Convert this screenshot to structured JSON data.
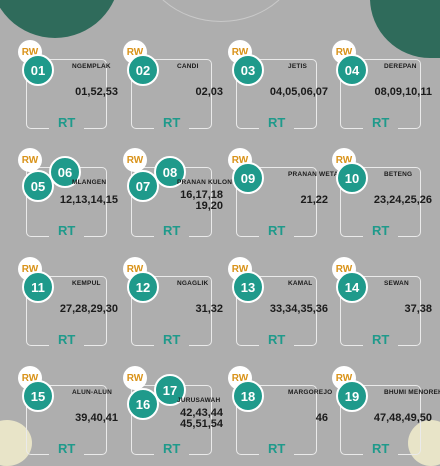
{
  "colors": {
    "background": "#aeaeae",
    "teal": "#1f9a8b",
    "rw_text": "#d9931a",
    "dark_green": "#2f6b5b"
  },
  "rw_label": "RW",
  "rt_label": "RT",
  "cards": [
    {
      "num": "01",
      "name": "NGEMPLAK",
      "values": [
        "01,52,53"
      ]
    },
    {
      "num": "02",
      "name": "CANDI",
      "values": [
        "02,03"
      ]
    },
    {
      "num": "03",
      "name": "JETIS",
      "values": [
        "04,05,06,07"
      ]
    },
    {
      "num": "04",
      "name": "DEREPAN",
      "values": [
        "08,09,10,11"
      ]
    },
    {
      "num": "05",
      "extra": "06",
      "name": "MLANGEN",
      "values": [
        "12,13,14,15"
      ]
    },
    {
      "num": "07",
      "extra": "08",
      "name": "PRANAN KULON",
      "values": [
        "16,17,18",
        "19,20"
      ]
    },
    {
      "num": "09",
      "name": "PRANAN WETAN",
      "values": [
        "21,22"
      ]
    },
    {
      "num": "10",
      "name": "BETENG",
      "values": [
        "23,24,25,26"
      ]
    },
    {
      "num": "11",
      "name": "KEMPUL",
      "values": [
        "27,28,29,30"
      ]
    },
    {
      "num": "12",
      "name": "NGAGLIK",
      "values": [
        "31,32"
      ]
    },
    {
      "num": "13",
      "name": "KAMAL",
      "values": [
        "33,34,35,36"
      ]
    },
    {
      "num": "14",
      "name": "SEWAN",
      "values": [
        "37,38"
      ]
    },
    {
      "num": "15",
      "name": "ALUN-ALUN",
      "values": [
        "39,40,41"
      ]
    },
    {
      "num": "16",
      "extra": "17",
      "name": "JURUSAWAH",
      "values": [
        "42,43,44",
        "45,51,54"
      ]
    },
    {
      "num": "18",
      "name": "MARGOREJO",
      "values": [
        "46"
      ]
    },
    {
      "num": "19",
      "name": "BHUMI MENOREH",
      "values": [
        "47,48,49,50"
      ]
    }
  ]
}
